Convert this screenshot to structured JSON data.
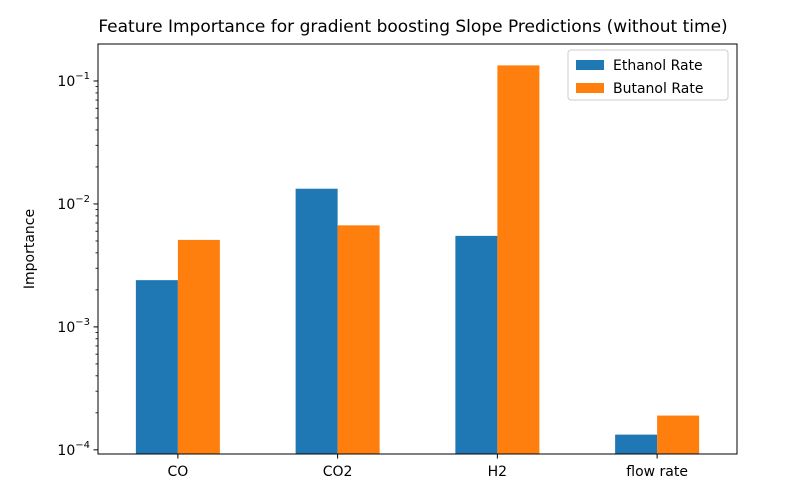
{
  "chart_data": {
    "type": "bar",
    "title": "Feature Importance for gradient boosting Slope Predictions (without time)",
    "xlabel": "",
    "ylabel": "Importance",
    "yscale": "log",
    "ylim": [
      9.25e-05,
      0.2
    ],
    "yticks": [
      {
        "value": 0.0001,
        "base": "10",
        "exp": "−4"
      },
      {
        "value": 0.001,
        "base": "10",
        "exp": "−3"
      },
      {
        "value": 0.01,
        "base": "10",
        "exp": "−2"
      },
      {
        "value": 0.1,
        "base": "10",
        "exp": "−1"
      }
    ],
    "categories": [
      "CO",
      "CO2",
      "H2",
      "flow rate"
    ],
    "series": [
      {
        "name": "Ethanol Rate",
        "color": "#1f77b4",
        "values": [
          0.0024,
          0.0133,
          0.0055,
          0.000133
        ]
      },
      {
        "name": "Butanol Rate",
        "color": "#ff7f0e",
        "values": [
          0.0051,
          0.0067,
          0.134,
          0.00019
        ]
      }
    ],
    "legend": "top-right",
    "grid": false
  }
}
